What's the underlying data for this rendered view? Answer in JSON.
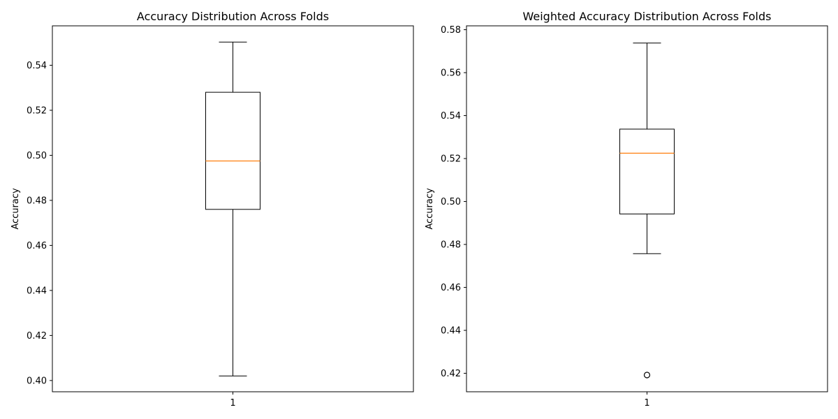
{
  "chart_data": [
    {
      "type": "box",
      "title": "Accuracy Distribution Across Folds",
      "xlabel": "",
      "ylabel": "Accuracy",
      "categories": [
        "1"
      ],
      "ylim": [
        0.395,
        0.5575
      ],
      "yticks": [
        "0.40",
        "0.42",
        "0.44",
        "0.46",
        "0.48",
        "0.50",
        "0.52",
        "0.54"
      ],
      "boxes": [
        {
          "whisker_low": 0.402,
          "q1": 0.476,
          "median": 0.4975,
          "q3": 0.528,
          "whisker_high": 0.5503,
          "outliers": []
        }
      ],
      "grid": false
    },
    {
      "type": "box",
      "title": "Weighted Accuracy Distribution Across Folds",
      "xlabel": "",
      "ylabel": "Accuracy",
      "categories": [
        "1"
      ],
      "ylim": [
        0.4114,
        0.5818
      ],
      "yticks": [
        "0.42",
        "0.44",
        "0.46",
        "0.48",
        "0.50",
        "0.52",
        "0.54",
        "0.56",
        "0.58"
      ],
      "boxes": [
        {
          "whisker_low": 0.4757,
          "q1": 0.4942,
          "median": 0.5225,
          "q3": 0.5337,
          "whisker_high": 0.5738,
          "outliers": [
            0.4192
          ]
        }
      ],
      "grid": false
    }
  ],
  "colors": {
    "box": "#000000",
    "median": "#ff7f0e",
    "background": "#ffffff"
  }
}
